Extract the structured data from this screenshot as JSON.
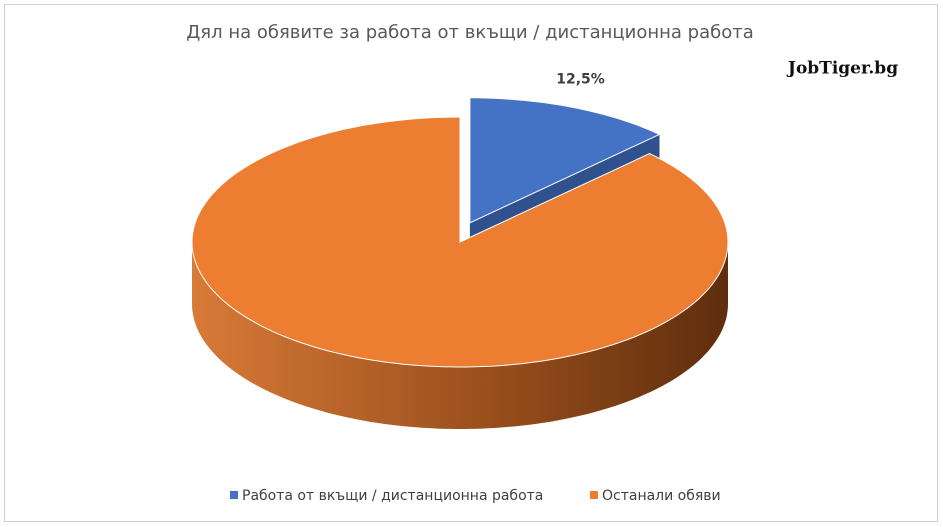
{
  "chart_data": {
    "type": "pie",
    "title": "Дял на обявите за работа от вкъщи / дистанционна работа",
    "watermark": "JobTiger.bg",
    "categories": [
      "Работа от вкъщи / дистанционна работа",
      "Останали обяви"
    ],
    "values": [
      12.5,
      87.5
    ],
    "value_labels": [
      "12,5%",
      null
    ],
    "colors": [
      "#4472c4",
      "#ed7d31"
    ],
    "side_colors": [
      "#2f528f",
      "#a0521c"
    ],
    "exploded": [
      true,
      false
    ],
    "legend": "bottom"
  }
}
